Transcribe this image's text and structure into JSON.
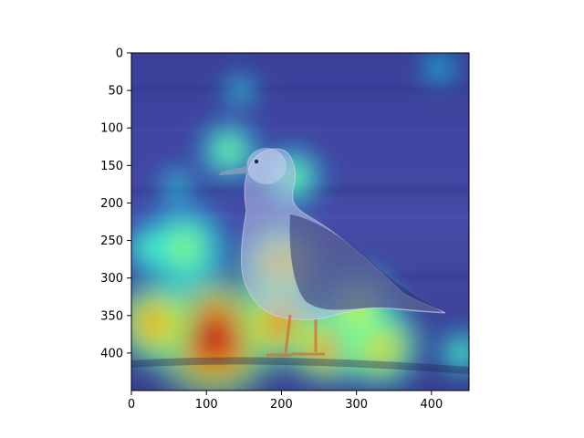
{
  "chart_data": {
    "type": "heatmap",
    "title": "",
    "xlabel": "",
    "ylabel": "",
    "image_width": 450,
    "image_height": 450,
    "xlim": [
      0,
      450
    ],
    "ylim": [
      450,
      0
    ],
    "x_ticks": [
      0,
      100,
      200,
      300,
      400
    ],
    "y_ticks": [
      0,
      50,
      100,
      150,
      200,
      250,
      300,
      350,
      400
    ],
    "colormap": "jet",
    "grid": false,
    "legend": "none",
    "background_scene": "seagull standing on a railing, grayscale photo with heatmap overlay",
    "heat_hotspots": [
      {
        "x": 110,
        "y": 380,
        "radius": 90,
        "intensity": 1.0
      },
      {
        "x": 30,
        "y": 360,
        "radius": 60,
        "intensity": 0.7
      },
      {
        "x": 200,
        "y": 360,
        "radius": 60,
        "intensity": 0.8
      },
      {
        "x": 260,
        "y": 390,
        "radius": 55,
        "intensity": 0.75
      },
      {
        "x": 330,
        "y": 390,
        "radius": 60,
        "intensity": 0.6
      },
      {
        "x": 200,
        "y": 280,
        "radius": 55,
        "intensity": 0.7
      },
      {
        "x": 300,
        "y": 340,
        "radius": 55,
        "intensity": 0.5
      },
      {
        "x": 440,
        "y": 400,
        "radius": 30,
        "intensity": 0.3
      },
      {
        "x": 130,
        "y": 130,
        "radius": 40,
        "intensity": 0.35
      },
      {
        "x": 215,
        "y": 165,
        "radius": 40,
        "intensity": 0.35
      },
      {
        "x": 145,
        "y": 50,
        "radius": 20,
        "intensity": 0.25
      },
      {
        "x": 60,
        "y": 175,
        "radius": 20,
        "intensity": 0.25
      },
      {
        "x": 70,
        "y": 260,
        "radius": 60,
        "intensity": 0.35
      },
      {
        "x": 20,
        "y": 260,
        "radius": 30,
        "intensity": 0.3
      },
      {
        "x": 410,
        "y": 20,
        "radius": 20,
        "intensity": 0.2
      }
    ]
  },
  "colors": {
    "jet_low": "#2c2f8a",
    "frame": "#000000",
    "text": "#000000"
  }
}
